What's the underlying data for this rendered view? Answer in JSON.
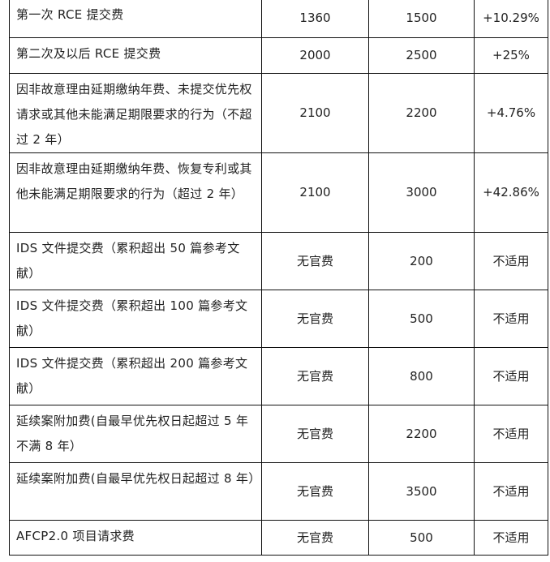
{
  "fee_table": {
    "rows": [
      {
        "item": "第一次 RCE 提交费",
        "old_fee": "1360",
        "new_fee": "1500",
        "change": "+10.29%"
      },
      {
        "item": "第二次及以后 RCE 提交费",
        "old_fee": "2000",
        "new_fee": "2500",
        "change": "+25%"
      },
      {
        "item": "因非故意理由延期缴纳年费、未提交优先权请求或其他未能满足期限要求的行为（不超过 2 年）",
        "old_fee": "2100",
        "new_fee": "2200",
        "change": "+4.76%"
      },
      {
        "item": "因非故意理由延期缴纳年费、恢复专利或其他未能满足期限要求的行为（超过 2 年）",
        "old_fee": "2100",
        "new_fee": "3000",
        "change": "+42.86%"
      },
      {
        "item": "IDS 文件提交费（累积超出 50 篇参考文献）",
        "old_fee": "无官费",
        "new_fee": "200",
        "change": "不适用"
      },
      {
        "item": "IDS 文件提交费（累积超出 100 篇参考文献）",
        "old_fee": "无官费",
        "new_fee": "500",
        "change": "不适用"
      },
      {
        "item": "IDS 文件提交费（累积超出 200 篇参考文献）",
        "old_fee": "无官费",
        "new_fee": "800",
        "change": "不适用"
      },
      {
        "item": "延续案附加费(自最早优先权日起超过 5 年不满 8 年）",
        "old_fee": "无官费",
        "new_fee": "2200",
        "change": "不适用"
      },
      {
        "item": "延续案附加费(自最早优先权日起超过 8 年）",
        "old_fee": "无官费",
        "new_fee": "3500",
        "change": "不适用"
      },
      {
        "item": "AFCP2.0 项目请求费",
        "old_fee": "无官费",
        "new_fee": "500",
        "change": "不适用"
      }
    ]
  }
}
